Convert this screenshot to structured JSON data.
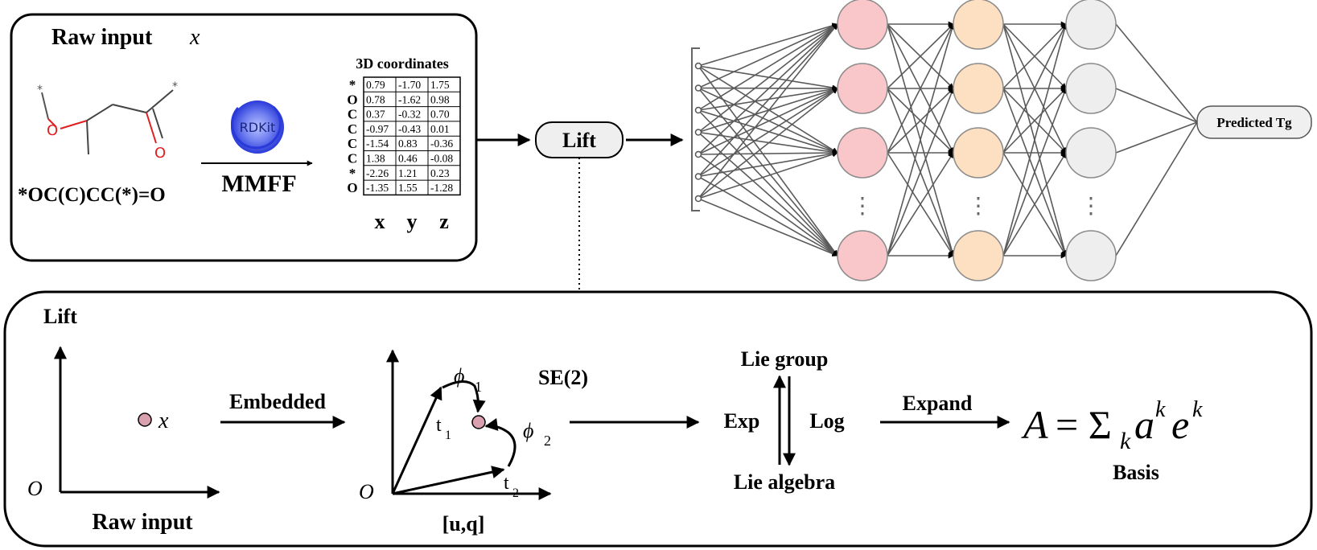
{
  "raw_panel": {
    "title": "Raw input",
    "title_var": "x",
    "smiles": "*OC(C)CC(*)=O",
    "rdkit": "RDKit",
    "mmff": "MMFF",
    "coords_title": "3D coordinates",
    "atoms": [
      "*",
      "O",
      "C",
      "C",
      "C",
      "C",
      "*",
      "O"
    ],
    "rows": [
      [
        "0.79",
        "-1.70",
        "1.75"
      ],
      [
        "0.78",
        "-1.62",
        "0.98"
      ],
      [
        "0.37",
        "-0.32",
        "0.70"
      ],
      [
        "-0.97",
        "-0.43",
        "0.01"
      ],
      [
        "-1.54",
        "0.83",
        "-0.36"
      ],
      [
        "1.38",
        "0.46",
        "-0.08"
      ],
      [
        "-2.26",
        "1.21",
        "0.23"
      ],
      [
        "-1.35",
        "1.55",
        "-1.28"
      ]
    ],
    "axes": [
      "x",
      "y",
      "z"
    ]
  },
  "mol": {
    "star": "*",
    "o_label": "O"
  },
  "lift_box": "Lift",
  "predicted": "Predicted Tg",
  "network": {
    "input_nodes": 7,
    "layers": [
      {
        "color": "#f9c6c9",
        "stroke": "#8a8a8a"
      },
      {
        "color": "#fde0c2",
        "stroke": "#8a8a8a"
      },
      {
        "color": "#eeeeee",
        "stroke": "#8a8a8a"
      }
    ],
    "ellipsis": "⋮"
  },
  "lift_panel": {
    "title": "Lift",
    "origin": "O",
    "point_var": "x",
    "raw_input": "Raw input",
    "embedded": "Embedded",
    "se2": "SE(2)",
    "phi1": "ϕ",
    "phi1_sub": "1",
    "phi2": "ϕ",
    "phi2_sub": "2",
    "t1": "t",
    "t1_sub": "1",
    "t2": "t",
    "t2_sub": "2",
    "uq": "[u,q]",
    "lie_group": "Lie group",
    "lie_algebra": "Lie algebra",
    "exp": "Exp",
    "log": "Log",
    "expand": "Expand",
    "formula_A": "A",
    "formula_eq": "= Σ",
    "formula_k": "k",
    "formula_a": "a",
    "formula_e": "e",
    "formula_sup": "k",
    "basis": "Basis"
  },
  "colors": {
    "point": "#d9a0b0",
    "mol_red": "#e02020",
    "rdkit_blue": "#3b4fe0"
  }
}
